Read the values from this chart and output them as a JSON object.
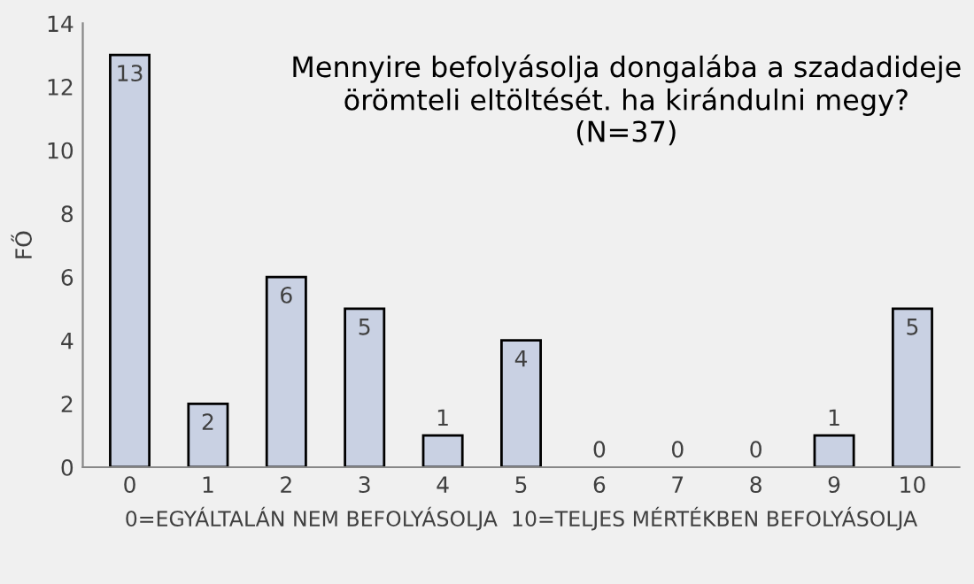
{
  "chart_data": {
    "type": "bar",
    "title": "Mennyire befolyásolja dongalába a szadadideje\nörömteli eltöltését. ha kirándulni megy?\n(N=37)",
    "xlabel": "0=EGYÁLTALÁN NEM BEFOLYÁSOLJA  10=TELJES MÉRTÉKBEN BEFOLYÁSOLJA",
    "ylabel": "FŐ",
    "categories": [
      "0",
      "1",
      "2",
      "3",
      "4",
      "5",
      "6",
      "7",
      "8",
      "9",
      "10"
    ],
    "values": [
      13,
      2,
      6,
      5,
      1,
      4,
      0,
      0,
      0,
      1,
      5
    ],
    "color": "#c9d1e3",
    "ylim": [
      0,
      14
    ],
    "yticks": [
      0,
      2,
      4,
      6,
      8,
      10,
      12,
      14
    ],
    "grid": false,
    "data_labels": true
  }
}
